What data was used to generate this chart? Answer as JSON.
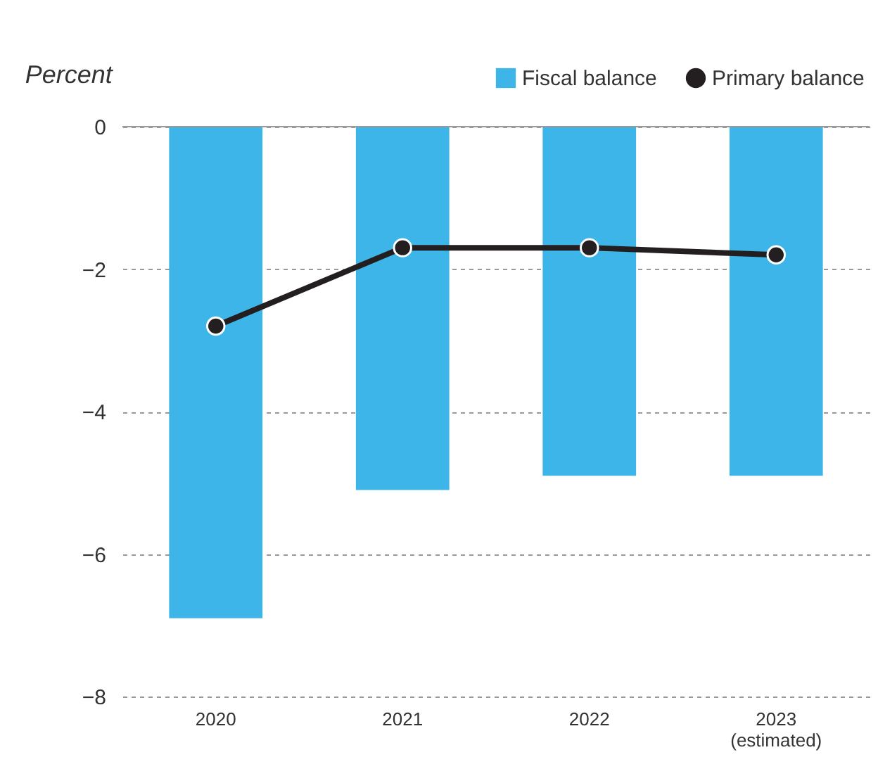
{
  "chart_data": {
    "type": "bar",
    "ylabel": "Percent",
    "categories": [
      "2020",
      "2021",
      "2022",
      "2023\n(estimated)"
    ],
    "series": [
      {
        "name": "Fiscal balance",
        "color": "#3db5e8",
        "values": [
          -6.9,
          -5.1,
          -4.9,
          -4.9
        ]
      },
      {
        "name": "Primary balance",
        "type": "line",
        "color": "#231f20",
        "marker": "circle",
        "values": [
          -2.8,
          -1.7,
          -1.7,
          -1.8
        ]
      }
    ],
    "ylim": [
      -8,
      0
    ],
    "yticks": [
      0,
      -2,
      -4,
      -6,
      -8
    ],
    "grid": "y",
    "legend": "top right"
  }
}
